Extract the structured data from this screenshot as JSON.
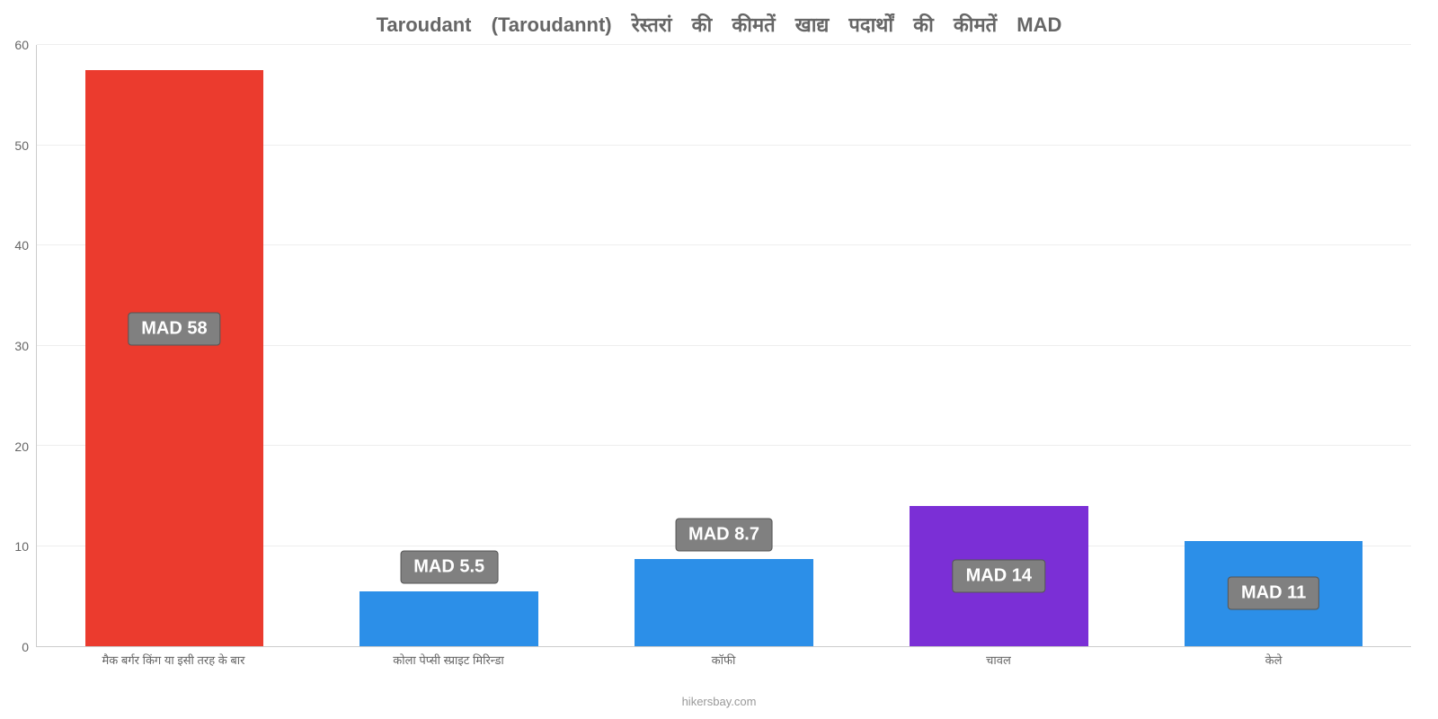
{
  "chart": {
    "type": "bar",
    "title": "Taroudant (Taroudannt) रेस्तरां की कीमतें खाद्य पदार्थों की कीमतें MAD",
    "title_color": "#666666",
    "title_fontsize": 22,
    "background_color": "#ffffff",
    "grid_color": "#eeeeee",
    "axis_color": "#cccccc",
    "yaxis": {
      "min": 0,
      "max": 60,
      "ticks": [
        0,
        10,
        20,
        30,
        40,
        50,
        60
      ],
      "label_color": "#666666",
      "label_fontsize": 14
    },
    "xaxis": {
      "label_color": "#666666",
      "label_fontsize": 13
    },
    "categories": [
      "मैक बर्गर किंग या इसी तरह के बार",
      "कोला पेप्सी स्प्राइट मिरिन्डा",
      "कॉफी",
      "चावल",
      "केले"
    ],
    "values": [
      57.5,
      5.5,
      8.7,
      14,
      10.5
    ],
    "value_labels": [
      "MAD 58",
      "MAD 5.5",
      "MAD 8.7",
      "MAD 14",
      "MAD 11"
    ],
    "bar_colors": [
      "#eb3b2e",
      "#2c8fe8",
      "#2c8fe8",
      "#7b2fd6",
      "#2c8fe8"
    ],
    "bar_width_pct": 13,
    "bar_positions_pct": [
      10,
      30,
      50,
      70,
      90
    ],
    "label_box": {
      "bg": "#808080",
      "border": "#555555",
      "text_color": "#ffffff",
      "fontsize": 20
    },
    "footer": "hikersbay.com",
    "footer_color": "#999999"
  }
}
